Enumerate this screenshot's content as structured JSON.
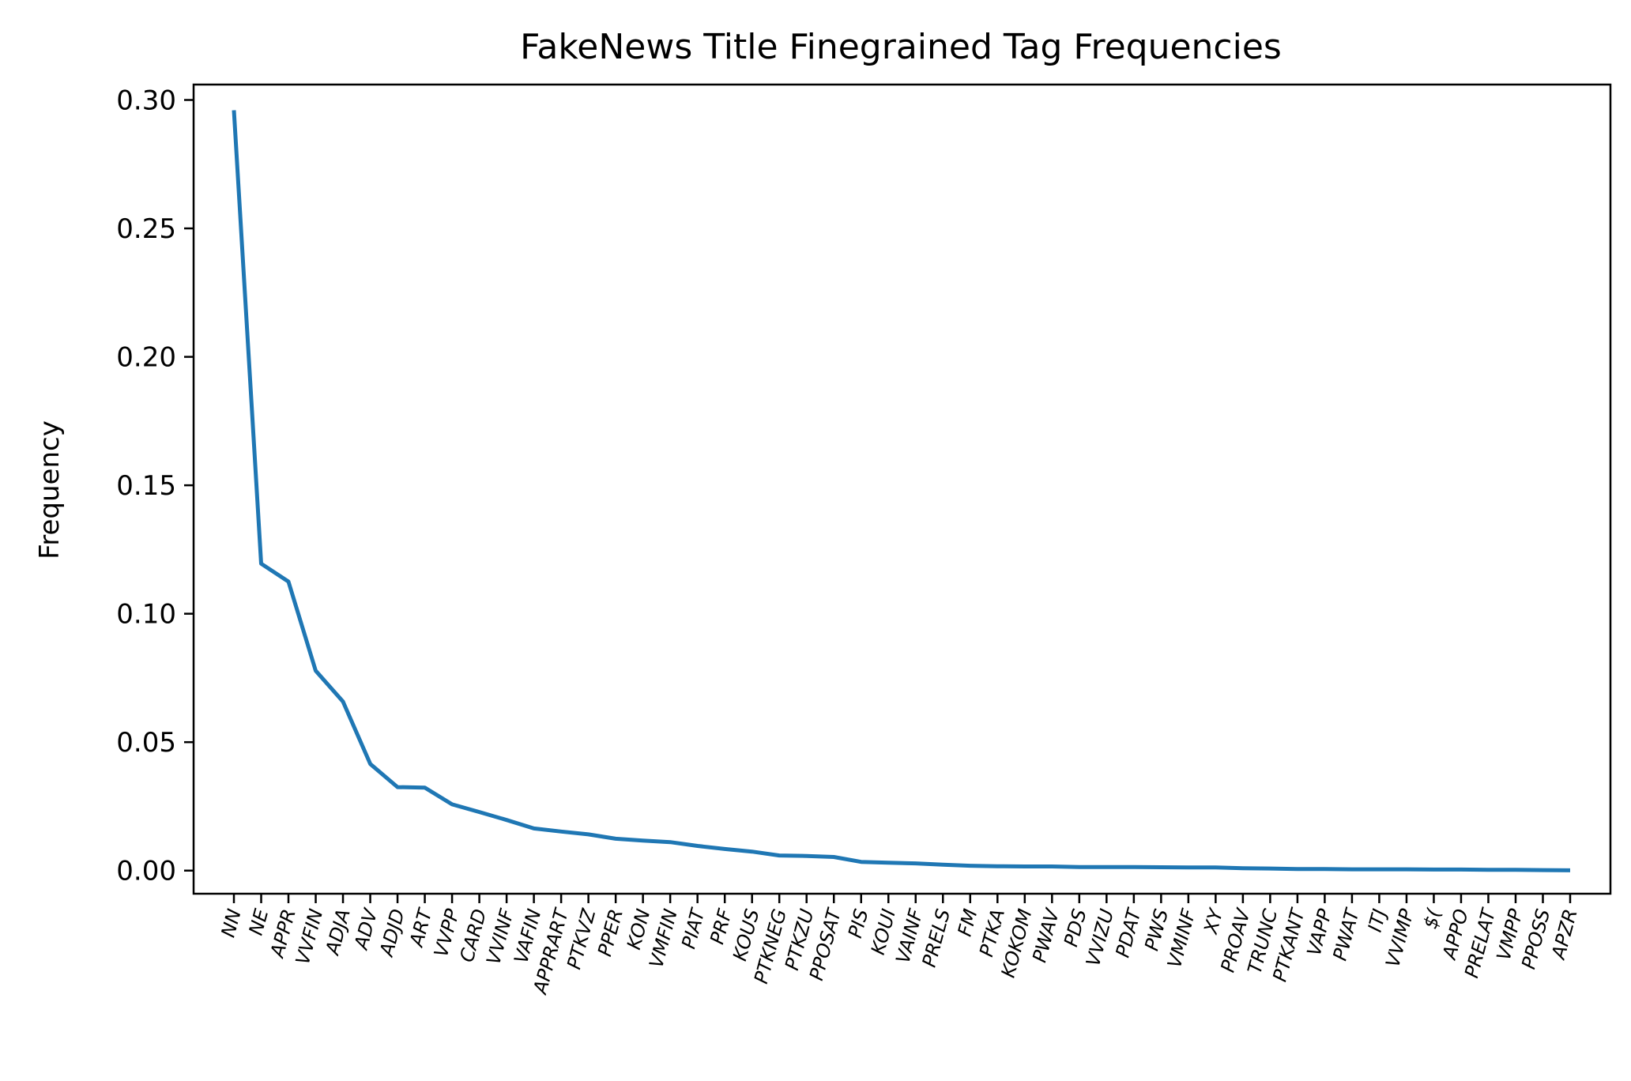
{
  "chart_data": {
    "type": "line",
    "title": "FakeNews Title Finegrained Tag Frequencies",
    "xlabel": "",
    "ylabel": "Frequency",
    "ylim": [
      -0.009,
      0.306
    ],
    "yticks": [
      "0.00",
      "0.05",
      "0.10",
      "0.15",
      "0.20",
      "0.25",
      "0.30"
    ],
    "grid": false,
    "legend": "none",
    "colors": {
      "line": "#1f77b4",
      "axes": "#000000"
    },
    "categories": [
      "NN",
      "NE",
      "APPR",
      "VVFIN",
      "ADJA",
      "ADV",
      "ADJD",
      "ART",
      "VVPP",
      "CARD",
      "VVINF",
      "VAFIN",
      "APPRART",
      "PTKVZ",
      "PPER",
      "KON",
      "VMFIN",
      "PIAT",
      "PRF",
      "KOUS",
      "PTKNEG",
      "PTKZU",
      "PPOSAT",
      "PIS",
      "KOUI",
      "VAINF",
      "PRELS",
      "FM",
      "PTKA",
      "KOKOM",
      "PWAV",
      "PDS",
      "VVIZU",
      "PDAT",
      "PWS",
      "VMINF",
      "XY",
      "PROAV",
      "TRUNC",
      "PTKANT",
      "VAPP",
      "PWAT",
      "ITJ",
      "VVIMP",
      "$(",
      "APPO",
      "PRELAT",
      "VMPP",
      "PPOSS",
      "APZR"
    ],
    "values": [
      0.296,
      0.1195,
      0.1125,
      0.0778,
      0.0658,
      0.0415,
      0.0325,
      0.0323,
      0.0258,
      0.0228,
      0.0197,
      0.0164,
      0.0152,
      0.0141,
      0.0124,
      0.0117,
      0.0111,
      0.0096,
      0.0084,
      0.0074,
      0.0059,
      0.0057,
      0.0053,
      0.0034,
      0.0031,
      0.0028,
      0.0023,
      0.0019,
      0.0017,
      0.0016,
      0.0016,
      0.0014,
      0.0014,
      0.0014,
      0.0013,
      0.0012,
      0.0012,
      0.0009,
      0.0008,
      0.0006,
      0.0006,
      0.0005,
      0.0005,
      0.0005,
      0.0004,
      0.0004,
      0.0003,
      0.0003,
      0.0002,
      0.0001
    ]
  }
}
